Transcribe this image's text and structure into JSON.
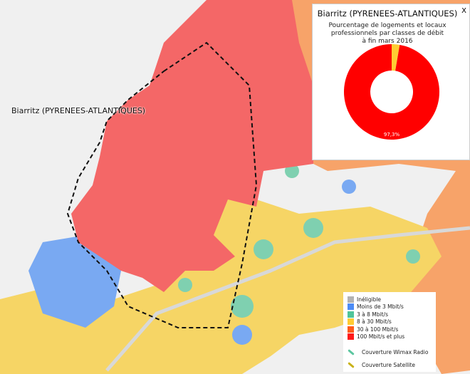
{
  "map": {
    "place_label": "Biarritz (PYRENEES-ATLANTIQUES)"
  },
  "popup": {
    "title": "Biarritz (PYRENEES-ATLANTIQUES)",
    "close_label": "X",
    "subtitle": "Pourcentage de logements et locaux\nprofessionnels par classes de débit\nà fin mars 2016",
    "chart_data": {
      "type": "pie",
      "donut": true,
      "slices": [
        {
          "label": "100 Mbit/s et plus",
          "value": 97.3,
          "color": "#ff0000",
          "data_label": "97,3%"
        },
        {
          "label": "8 à 30 Mbit/s",
          "value": 2.7,
          "color": "#ffcc33"
        }
      ]
    }
  },
  "legend": {
    "items": [
      {
        "label": "Inéligible",
        "color": "#b3b3b3"
      },
      {
        "label": "Moins de 3 Mbit/s",
        "color": "#4d8cf5"
      },
      {
        "label": "3 à 8 Mbit/s",
        "color": "#4fc49a"
      },
      {
        "label": "8 à 30 Mbit/s",
        "color": "#ffcc33"
      },
      {
        "label": "30 à 100 Mbit/s",
        "color": "#ff5a1a"
      },
      {
        "label": "100 Mbit/s et plus",
        "color": "#ff1a1a"
      }
    ],
    "coverage": [
      {
        "label": "Couverture Wimax Radio",
        "color": "#5cc6a0",
        "icon": "wimax-icon"
      },
      {
        "label": "Couverture Satellite",
        "color": "#c9b21a",
        "icon": "satellite-icon"
      }
    ]
  }
}
